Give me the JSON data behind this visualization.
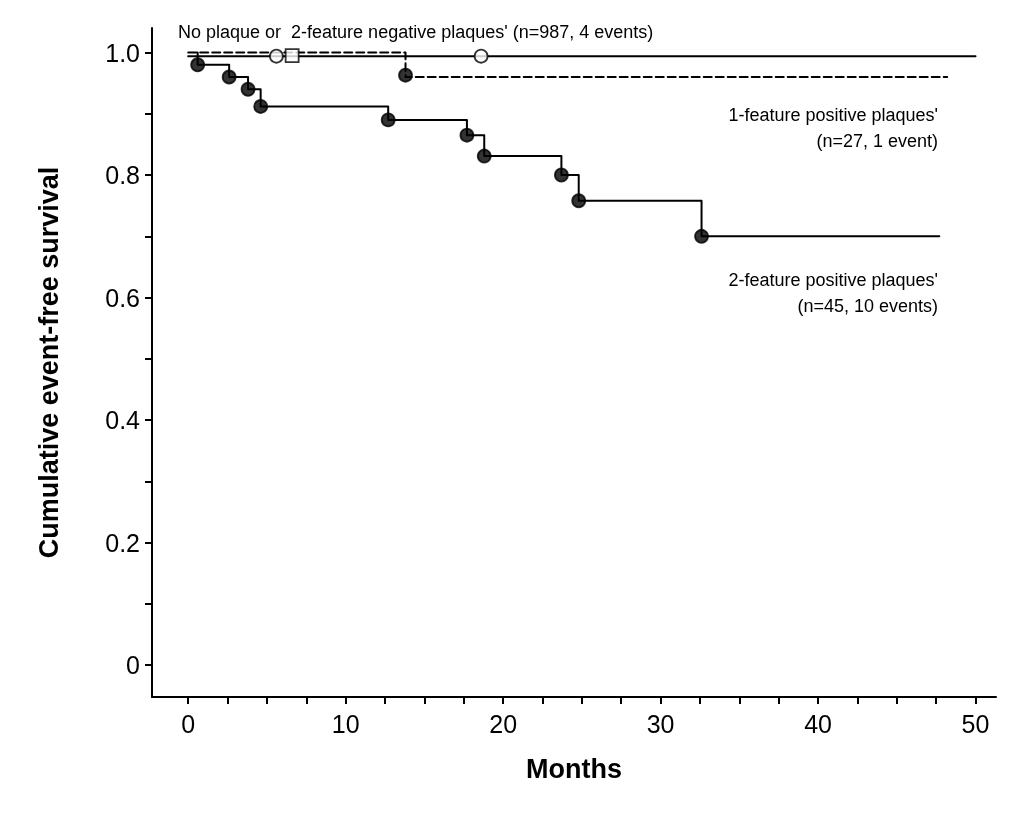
{
  "chart_data": {
    "type": "step",
    "xlabel": "Months",
    "ylabel": "Cumulative event-free survival",
    "xlim": [
      -2.3,
      51.3
    ],
    "ylim": [
      -0.052,
      1.04
    ],
    "xticks": [
      0,
      {
        "value": 2.5,
        "label": null
      },
      {
        "value": 5,
        "label": null
      },
      {
        "value": 7.5,
        "label": null
      },
      10,
      {
        "value": 12.5,
        "label": null
      },
      {
        "value": 15,
        "label": null
      },
      {
        "value": 17.5,
        "label": null
      },
      20,
      {
        "value": 22.5,
        "label": null
      },
      {
        "value": 25,
        "label": null
      },
      {
        "value": 27.5,
        "label": null
      },
      30,
      {
        "value": 32.5,
        "label": null
      },
      {
        "value": 35,
        "label": null
      },
      {
        "value": 37.5,
        "label": null
      },
      40,
      {
        "value": 42.5,
        "label": null
      },
      {
        "value": 45,
        "label": null
      },
      {
        "value": 47.5,
        "label": null
      },
      50
    ],
    "yticks": [
      0,
      {
        "value": 0.1,
        "label": null
      },
      0.2,
      {
        "value": 0.3,
        "label": null
      },
      0.4,
      {
        "value": 0.5,
        "label": null
      },
      0.6,
      {
        "value": 0.7,
        "label": null
      },
      0.8,
      {
        "value": 0.9,
        "label": null
      },
      {
        "value": 1,
        "label": "1.0"
      }
    ],
    "grid": false,
    "series": [
      {
        "color": "#000000",
        "line_style": "solid",
        "x": [
          0,
          50
        ],
        "values": [
          0.994,
          0.994
        ]
      },
      {
        "color": "#000000",
        "line_style": "dashed",
        "x": [
          0,
          13.8,
          48.2
        ],
        "values": [
          1.0,
          0.96,
          0.96
        ]
      },
      {
        "color": "#000000",
        "line_style": "solid",
        "x": [
          0.6,
          0.6,
          2.6,
          3.8,
          4.6,
          12.7,
          17.7,
          18.8,
          23.7,
          24.8,
          32.6,
          47.7
        ],
        "values": [
          1.0,
          0.98,
          0.96,
          0.94,
          0.912,
          0.89,
          0.865,
          0.831,
          0.8,
          0.758,
          0.7,
          0.7
        ]
      },
      {
        "type": "scatter",
        "color": "#ffffff",
        "marker": "circle",
        "x": [
          5.6,
          18.6
        ],
        "values": [
          0.994,
          0.994
        ]
      },
      {
        "type": "scatter",
        "color": "#ffffff",
        "marker": "square",
        "x": [
          6.6
        ],
        "values": [
          0.995
        ]
      },
      {
        "type": "scatter",
        "color": "#000000",
        "marker": "circle",
        "x": [
          13.8
        ],
        "values": [
          0.963
        ]
      },
      {
        "type": "scatter",
        "color": "#000000",
        "marker": "circle",
        "x": [
          0.6,
          2.6,
          3.8,
          4.6,
          12.7,
          17.7,
          18.8,
          23.7,
          24.8,
          32.6
        ],
        "values": [
          0.98,
          0.96,
          0.94,
          0.912,
          0.89,
          0.865,
          0.831,
          0.8,
          0.758,
          0.7
        ]
      }
    ],
    "annotations": [
      "No plaque or  2-feature negative plaques' (n=987, 4 events)",
      "1-feature positive plaques'\n(n=27, 1 event)",
      "2-feature positive plaques'\n(n=45, 10 events)"
    ]
  }
}
